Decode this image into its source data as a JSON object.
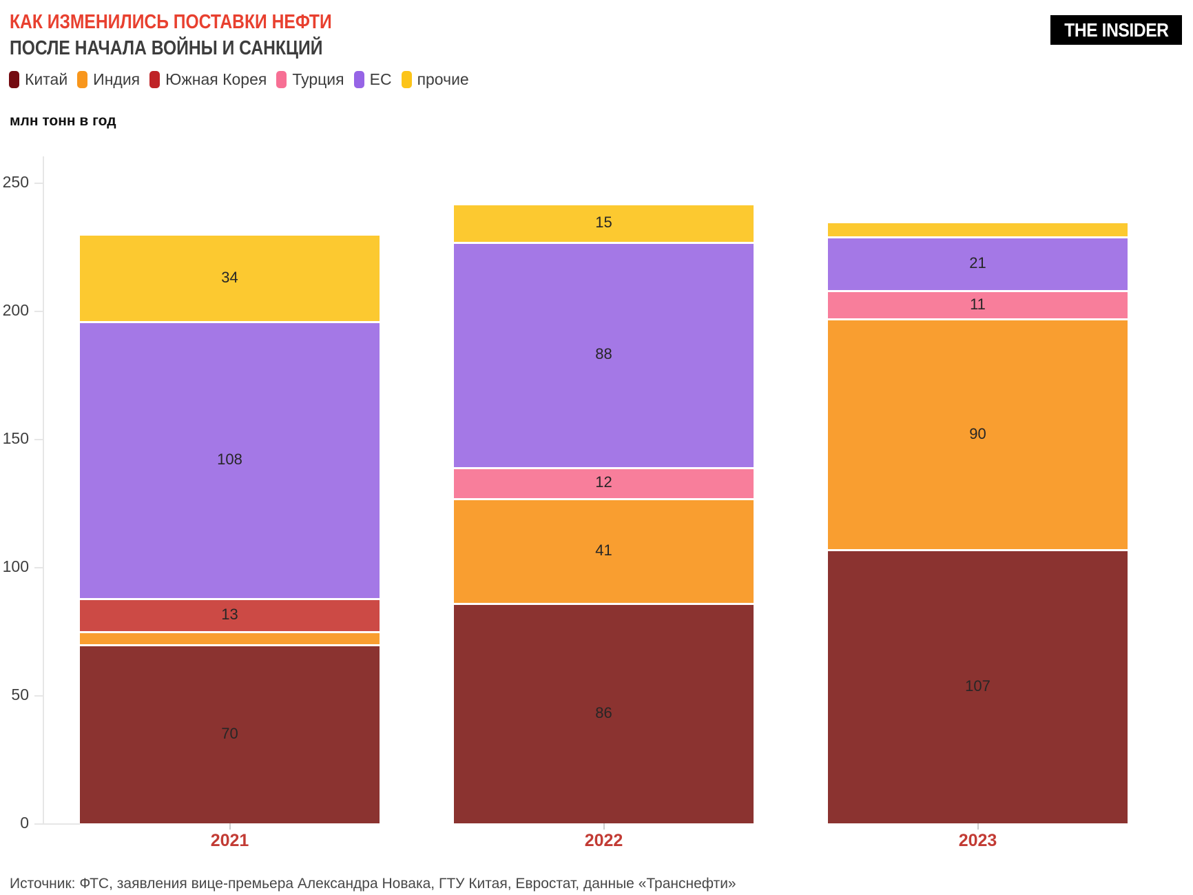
{
  "header": {
    "title_line1": "КАК ИЗМЕНИЛИСЬ ПОСТАВКИ НЕФТИ",
    "title_line2": "ПОСЛЕ НАЧАЛА ВОЙНЫ И САНКЦИЙ",
    "title_color": "#e8402f",
    "subtitle_color": "#3d3d3d",
    "logo_text": "THE INSIDER"
  },
  "chart_data": {
    "type": "bar",
    "stacked": true,
    "title": "КАК ИЗМЕНИЛИСЬ ПОСТАВКИ НЕФТИ ПОСЛЕ НАЧАЛА ВОЙНЫ И САНКЦИЙ",
    "ylabel": "млн тонн в год",
    "categories": [
      "2021",
      "2022",
      "2023"
    ],
    "category_label_color": "#c23b34",
    "yticks": [
      0,
      50,
      100,
      150,
      200,
      250
    ],
    "ylim": [
      0,
      250
    ],
    "grid": false,
    "legend_position": "top",
    "series": [
      {
        "name": "Китай",
        "legend_color": "#740b11",
        "bar_color": "#8b3330",
        "values": [
          70,
          86,
          107
        ],
        "labels": [
          "70",
          "86",
          "107"
        ]
      },
      {
        "name": "Индия",
        "legend_color": "#f8961c",
        "bar_color": "#f99e30",
        "values": [
          5,
          41,
          90
        ],
        "labels": [
          "",
          "41",
          "90"
        ]
      },
      {
        "name": "Южная Корея",
        "legend_color": "#bf2327",
        "bar_color": "#cc4a45",
        "values": [
          13,
          0,
          0
        ],
        "labels": [
          "13",
          "",
          ""
        ]
      },
      {
        "name": "Турция",
        "legend_color": "#f76f94",
        "bar_color": "#f87e9b",
        "values": [
          0,
          12,
          11
        ],
        "labels": [
          "",
          "12",
          "11"
        ]
      },
      {
        "name": "ЕС",
        "legend_color": "#9664e6",
        "bar_color": "#a478e6",
        "values": [
          108,
          88,
          21
        ],
        "labels": [
          "108",
          "88",
          "21"
        ]
      },
      {
        "name": "прочие",
        "legend_color": "#fcc419",
        "bar_color": "#fcc930",
        "values": [
          34,
          15,
          6
        ],
        "labels": [
          "34",
          "15",
          ""
        ]
      }
    ]
  },
  "footer": {
    "source": "Источник: ФТС, заявления вице-премьера Александра Новака, ГТУ Китая, Евростат, данные «Транснефти»"
  }
}
